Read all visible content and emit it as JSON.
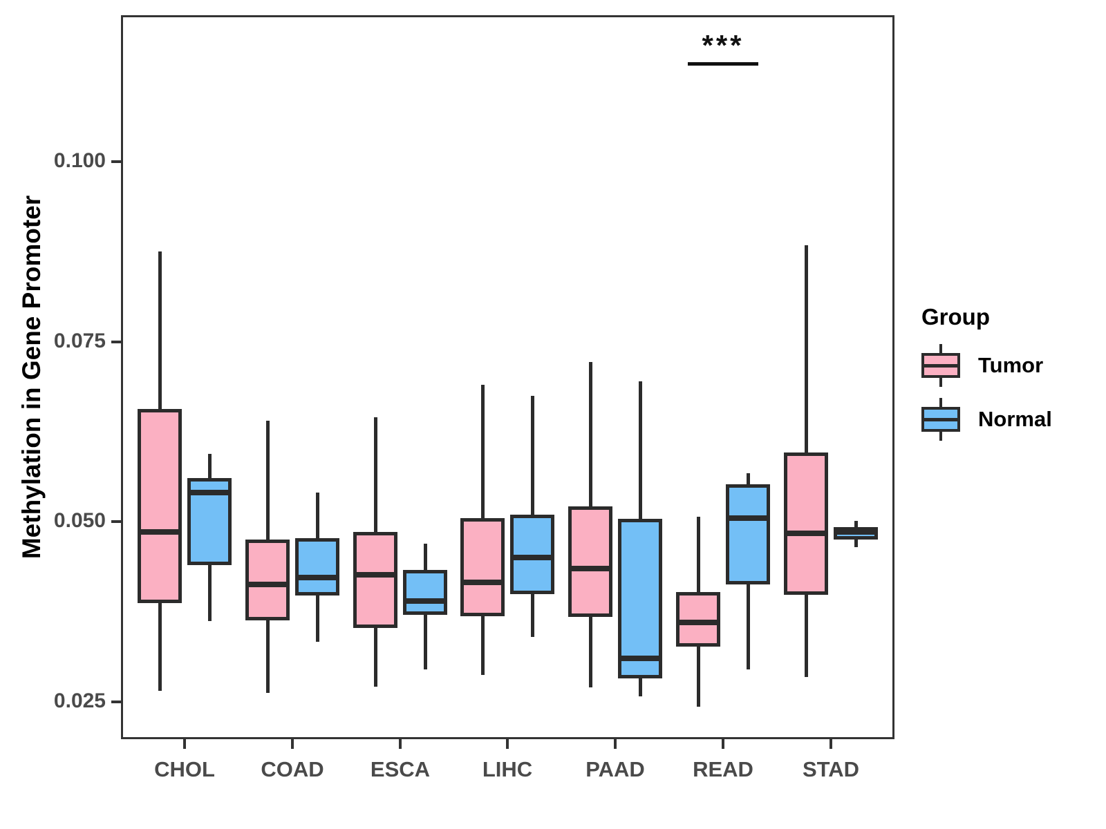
{
  "y_axis": {
    "title": "Methylation in Gene Promoter",
    "tick_labels": [
      "0.100",
      "0.075",
      "0.050",
      "0.025"
    ],
    "tick_values": [
      0.1,
      0.075,
      0.05,
      0.025
    ],
    "range": [
      0.0198,
      0.1203
    ]
  },
  "x_axis": {
    "categories": [
      "CHOL",
      "COAD",
      "ESCA",
      "LIHC",
      "PAAD",
      "READ",
      "STAD"
    ]
  },
  "legend": {
    "title": "Group",
    "items": [
      {
        "label": "Tumor",
        "color": "#FBB0C2"
      },
      {
        "label": "Normal",
        "color": "#73BFF6"
      }
    ]
  },
  "annotation": {
    "text": "***",
    "over_category": "READ"
  },
  "colors": {
    "tumor_fill": "#FBB0C2",
    "normal_fill": "#73BFF6",
    "line": "#2b2b2b",
    "panel_border": "#333333",
    "tick_text": "#4a4a4a"
  },
  "chart_data": {
    "type": "boxplot",
    "title": "",
    "xlabel": "",
    "ylabel": "Methylation in Gene Promoter",
    "grid": false,
    "legend_position": "right",
    "categories": [
      "CHOL",
      "COAD",
      "ESCA",
      "LIHC",
      "PAAD",
      "READ",
      "STAD"
    ],
    "ylim": [
      0.0198,
      0.1203
    ],
    "series": [
      {
        "name": "Tumor",
        "color": "#FBB0C2",
        "values": [
          {
            "min": 0.0265,
            "q1": 0.0387,
            "median": 0.0486,
            "q3": 0.0657,
            "max": 0.0875
          },
          {
            "min": 0.0262,
            "q1": 0.0363,
            "median": 0.0413,
            "q3": 0.0475,
            "max": 0.064
          },
          {
            "min": 0.0271,
            "q1": 0.0353,
            "median": 0.0426,
            "q3": 0.0486,
            "max": 0.0645
          },
          {
            "min": 0.0287,
            "q1": 0.0369,
            "median": 0.0416,
            "q3": 0.0505,
            "max": 0.069
          },
          {
            "min": 0.027,
            "q1": 0.0368,
            "median": 0.0435,
            "q3": 0.0521,
            "max": 0.0722
          },
          {
            "min": 0.0243,
            "q1": 0.0327,
            "median": 0.036,
            "q3": 0.0402,
            "max": 0.0507
          },
          {
            "min": 0.0285,
            "q1": 0.0399,
            "median": 0.0484,
            "q3": 0.0596,
            "max": 0.0884
          }
        ]
      },
      {
        "name": "Normal",
        "color": "#73BFF6",
        "values": [
          {
            "min": 0.0362,
            "q1": 0.044,
            "median": 0.0541,
            "q3": 0.0561,
            "max": 0.0594
          },
          {
            "min": 0.0333,
            "q1": 0.0398,
            "median": 0.0423,
            "q3": 0.0477,
            "max": 0.0541
          },
          {
            "min": 0.0295,
            "q1": 0.0371,
            "median": 0.039,
            "q3": 0.0433,
            "max": 0.047
          },
          {
            "min": 0.034,
            "q1": 0.04,
            "median": 0.045,
            "q3": 0.051,
            "max": 0.0675
          },
          {
            "min": 0.0258,
            "q1": 0.0283,
            "median": 0.031,
            "q3": 0.0504,
            "max": 0.0695
          },
          {
            "min": 0.0295,
            "q1": 0.0413,
            "median": 0.0505,
            "q3": 0.0552,
            "max": 0.0567
          },
          {
            "min": 0.0465,
            "q1": 0.0475,
            "median": 0.0486,
            "q3": 0.0493,
            "max": 0.0501
          }
        ]
      }
    ]
  }
}
